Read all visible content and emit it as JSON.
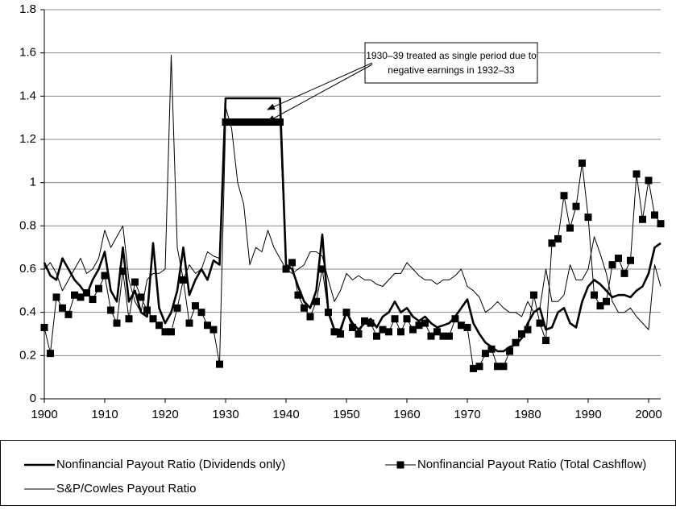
{
  "chart_data": {
    "type": "line",
    "x": [
      1900,
      1901,
      1902,
      1903,
      1904,
      1905,
      1906,
      1907,
      1908,
      1909,
      1910,
      1911,
      1912,
      1913,
      1914,
      1915,
      1916,
      1917,
      1918,
      1919,
      1920,
      1921,
      1922,
      1923,
      1924,
      1925,
      1926,
      1927,
      1928,
      1929,
      1930,
      1931,
      1932,
      1933,
      1934,
      1935,
      1936,
      1937,
      1938,
      1939,
      1940,
      1941,
      1942,
      1943,
      1944,
      1945,
      1946,
      1947,
      1948,
      1949,
      1950,
      1951,
      1952,
      1953,
      1954,
      1955,
      1956,
      1957,
      1958,
      1959,
      1960,
      1961,
      1962,
      1963,
      1964,
      1965,
      1966,
      1967,
      1968,
      1969,
      1970,
      1971,
      1972,
      1973,
      1974,
      1975,
      1976,
      1977,
      1978,
      1979,
      1980,
      1981,
      1982,
      1983,
      1984,
      1985,
      1986,
      1987,
      1988,
      1989,
      1990,
      1991,
      1992,
      1993,
      1994,
      1995,
      1996,
      1997,
      1998,
      1999,
      2000,
      2001,
      2002
    ],
    "series": [
      {
        "name": "Nonfinancial Payout Ratio (Dividends only)",
        "color": "#000000",
        "style": "thick",
        "values": [
          0.63,
          0.57,
          0.55,
          0.65,
          0.6,
          0.55,
          0.52,
          0.48,
          0.55,
          0.6,
          0.68,
          0.5,
          0.45,
          0.7,
          0.45,
          0.5,
          0.4,
          0.38,
          0.72,
          0.42,
          0.35,
          0.4,
          0.5,
          0.7,
          0.48,
          0.55,
          0.6,
          0.55,
          0.64,
          0.62,
          1.39,
          1.39,
          1.39,
          1.39,
          1.39,
          1.39,
          1.39,
          1.39,
          1.39,
          1.39,
          0.62,
          0.6,
          0.52,
          0.45,
          0.42,
          0.5,
          0.76,
          0.4,
          0.32,
          0.32,
          0.4,
          0.35,
          0.32,
          0.35,
          0.37,
          0.33,
          0.38,
          0.4,
          0.45,
          0.4,
          0.42,
          0.38,
          0.36,
          0.38,
          0.35,
          0.33,
          0.34,
          0.35,
          0.38,
          0.42,
          0.46,
          0.35,
          0.3,
          0.26,
          0.24,
          0.22,
          0.22,
          0.24,
          0.25,
          0.28,
          0.35,
          0.4,
          0.42,
          0.32,
          0.33,
          0.4,
          0.42,
          0.35,
          0.33,
          0.45,
          0.52,
          0.55,
          0.53,
          0.5,
          0.47,
          0.48,
          0.48,
          0.47,
          0.5,
          0.52,
          0.58,
          0.7,
          0.72
        ]
      },
      {
        "name": "Nonfinancial Payout Ratio (Total Cashflow)",
        "color": "#000000",
        "style": "squares",
        "values": [
          0.33,
          0.21,
          0.47,
          0.42,
          0.39,
          0.48,
          0.47,
          0.49,
          0.46,
          0.51,
          0.57,
          0.41,
          0.35,
          0.59,
          0.37,
          0.54,
          0.47,
          0.41,
          0.37,
          0.34,
          0.31,
          0.31,
          0.42,
          0.55,
          0.35,
          0.43,
          0.4,
          0.34,
          0.32,
          0.16,
          1.28,
          1.28,
          1.28,
          1.28,
          1.28,
          1.28,
          1.28,
          1.28,
          1.28,
          1.28,
          0.6,
          0.63,
          0.48,
          0.42,
          0.38,
          0.45,
          0.6,
          0.4,
          0.31,
          0.3,
          0.4,
          0.33,
          0.3,
          0.36,
          0.35,
          0.29,
          0.32,
          0.31,
          0.37,
          0.31,
          0.37,
          0.32,
          0.34,
          0.35,
          0.29,
          0.31,
          0.29,
          0.29,
          0.37,
          0.34,
          0.33,
          0.14,
          0.15,
          0.21,
          0.23,
          0.15,
          0.15,
          0.22,
          0.26,
          0.3,
          0.32,
          0.48,
          0.35,
          0.27,
          0.72,
          0.74,
          0.94,
          0.79,
          0.89,
          1.09,
          0.84,
          0.48,
          0.43,
          0.45,
          0.62,
          0.65,
          0.58,
          0.64,
          1.04,
          0.83,
          1.01,
          0.85,
          0.81
        ]
      },
      {
        "name": "S&P/Cowles Payout Ratio",
        "color": "#000000",
        "style": "thin",
        "values": [
          0.6,
          0.63,
          0.58,
          0.5,
          0.55,
          0.6,
          0.65,
          0.58,
          0.6,
          0.65,
          0.78,
          0.7,
          0.75,
          0.8,
          0.55,
          0.45,
          0.4,
          0.55,
          0.58,
          0.58,
          0.6,
          1.59,
          0.7,
          0.55,
          0.62,
          0.58,
          0.6,
          0.68,
          0.66,
          0.65,
          1.35,
          1.25,
          1.0,
          0.9,
          0.62,
          0.7,
          0.68,
          0.78,
          0.7,
          0.65,
          0.6,
          0.58,
          0.6,
          0.62,
          0.68,
          0.68,
          0.66,
          0.55,
          0.45,
          0.5,
          0.58,
          0.55,
          0.57,
          0.55,
          0.55,
          0.53,
          0.52,
          0.55,
          0.58,
          0.58,
          0.63,
          0.6,
          0.57,
          0.55,
          0.55,
          0.53,
          0.55,
          0.55,
          0.57,
          0.6,
          0.52,
          0.5,
          0.47,
          0.4,
          0.42,
          0.45,
          0.42,
          0.4,
          0.4,
          0.38,
          0.45,
          0.4,
          0.42,
          0.6,
          0.45,
          0.45,
          0.48,
          0.62,
          0.55,
          0.55,
          0.6,
          0.75,
          0.67,
          0.58,
          0.45,
          0.4,
          0.4,
          0.42,
          0.38,
          0.35,
          0.32,
          0.62,
          0.52
        ]
      }
    ],
    "annotation": [
      "1930–39 treated as single period due to",
      "negative earnings in 1932–33"
    ],
    "xlim": [
      1900,
      2002
    ],
    "xticks": [
      1900,
      1910,
      1920,
      1930,
      1940,
      1950,
      1960,
      1970,
      1980,
      1990,
      2000
    ],
    "ylim": [
      0,
      1.8
    ],
    "yticks": [
      0,
      0.2,
      0.4,
      0.6,
      0.8,
      1,
      1.2,
      1.4,
      1.6,
      1.8
    ],
    "grid": true
  }
}
